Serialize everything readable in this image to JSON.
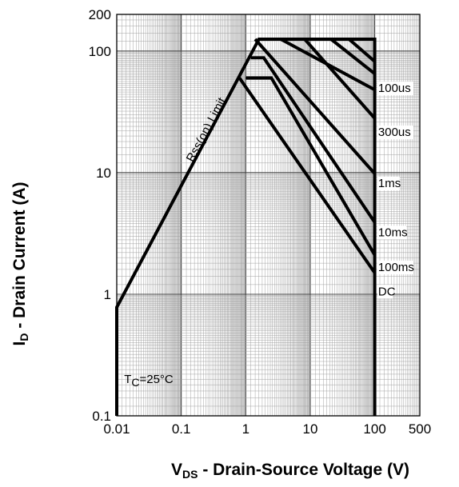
{
  "chart_data": {
    "type": "line",
    "title": "",
    "xlabel": {
      "main": "V",
      "sub": "DS",
      "rest": " - Drain-Source Voltage (V)"
    },
    "ylabel": {
      "main": "I",
      "sub": "D",
      "rest": " - Drain Current (A)"
    },
    "xscale": "log",
    "yscale": "log",
    "xlim": [
      0.01,
      500
    ],
    "ylim": [
      0.1,
      200
    ],
    "grid": true,
    "legend": "none",
    "x_ticks": [
      {
        "value": 0.01,
        "label": "0.01"
      },
      {
        "value": 0.1,
        "label": "0.1"
      },
      {
        "value": 1,
        "label": "1"
      },
      {
        "value": 10,
        "label": "10"
      },
      {
        "value": 100,
        "label": "100"
      },
      {
        "value": 500,
        "label": "500"
      }
    ],
    "y_ticks": [
      {
        "value": 0.1,
        "label": "0.1"
      },
      {
        "value": 1,
        "label": "1"
      },
      {
        "value": 10,
        "label": "10"
      },
      {
        "value": 100,
        "label": "100"
      },
      {
        "value": 200,
        "label": "200"
      }
    ],
    "limit_line": {
      "label": "Rss(on) Limit",
      "points": [
        [
          0.01,
          0.78
        ],
        [
          1.6,
          125
        ]
      ]
    },
    "series": [
      {
        "name": "100us",
        "points": [
          [
            3.5,
            125
          ],
          [
            100,
            48
          ]
        ]
      },
      {
        "name": "300us",
        "points": [
          [
            8.2,
            125
          ],
          [
            100,
            28
          ]
        ]
      },
      {
        "name": "1ms",
        "points": [
          [
            1.4,
            125
          ],
          [
            100,
            9.8
          ]
        ]
      },
      {
        "name": "10ms",
        "points": [
          [
            1.2,
            88
          ],
          [
            1.9,
            88
          ],
          [
            100,
            3.9
          ]
        ]
      },
      {
        "name": "100ms",
        "points": [
          [
            1.0,
            60
          ],
          [
            2.5,
            60
          ],
          [
            100,
            2.1
          ]
        ]
      },
      {
        "name": "DC",
        "points": [
          [
            0.8,
            60
          ],
          [
            100,
            1.5
          ]
        ]
      }
    ],
    "extra_hatch_lines": [
      [
        [
          21,
          125
        ],
        [
          100,
          65
        ]
      ],
      [
        [
          40,
          125
        ],
        [
          100,
          82
        ]
      ]
    ],
    "envelope": [
      [
        0.01,
        0.1
      ],
      [
        0.01,
        0.78
      ],
      [
        1.6,
        125
      ],
      [
        100,
        125
      ],
      [
        100,
        0.1
      ]
    ],
    "curve_labels": [
      {
        "text": "100us",
        "x": 113,
        "y": 46
      },
      {
        "text": "300us",
        "x": 113,
        "y": 20
      },
      {
        "text": "1ms",
        "x": 113,
        "y": 7.6
      },
      {
        "text": "10ms",
        "x": 113,
        "y": 3.0
      },
      {
        "text": "100ms",
        "x": 113,
        "y": 1.55
      },
      {
        "text": "DC",
        "x": 113,
        "y": 0.98
      }
    ],
    "annotation": {
      "main": "T",
      "sub": "C",
      "rest": "=25°C",
      "x": 0.013,
      "y": 0.2
    }
  }
}
